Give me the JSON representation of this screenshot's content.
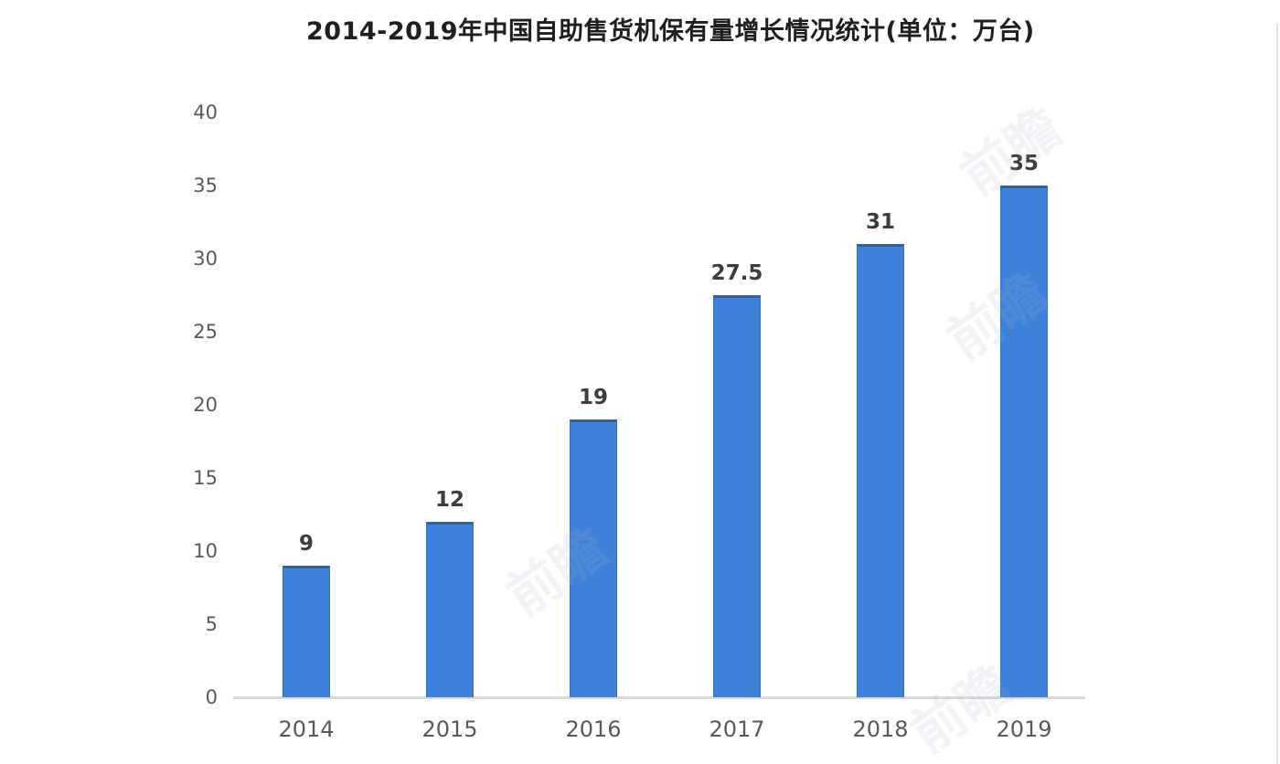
{
  "title": "2014-2019年中国自助售货机保有量增长情况统计(单位：万台)",
  "watermark_text": "前瞻",
  "chart_data": {
    "type": "bar",
    "title": "2014-2019年中国自助售货机保有量增长情况统计(单位：万台)",
    "categories": [
      "2014",
      "2015",
      "2016",
      "2017",
      "2018",
      "2019"
    ],
    "values": [
      9,
      12,
      19,
      27.5,
      31,
      35
    ],
    "value_labels": [
      "9",
      "12",
      "19",
      "27.5",
      "31",
      "35"
    ],
    "unit": "万台",
    "xlabel": "",
    "ylabel": "",
    "ylim": [
      0,
      40
    ],
    "yticks": [
      0,
      5,
      10,
      15,
      20,
      25,
      30,
      35,
      40
    ],
    "grid": false,
    "legend_position": "none",
    "bar_color": "#3d81db",
    "bar_edge_color": "#3f5f8f",
    "axis_line_color": "#d9d9d9",
    "tick_label_color": "#595959",
    "value_label_color": "#3d3d3d",
    "title_color": "#1f1f1f",
    "background_color": "#ffffff"
  }
}
